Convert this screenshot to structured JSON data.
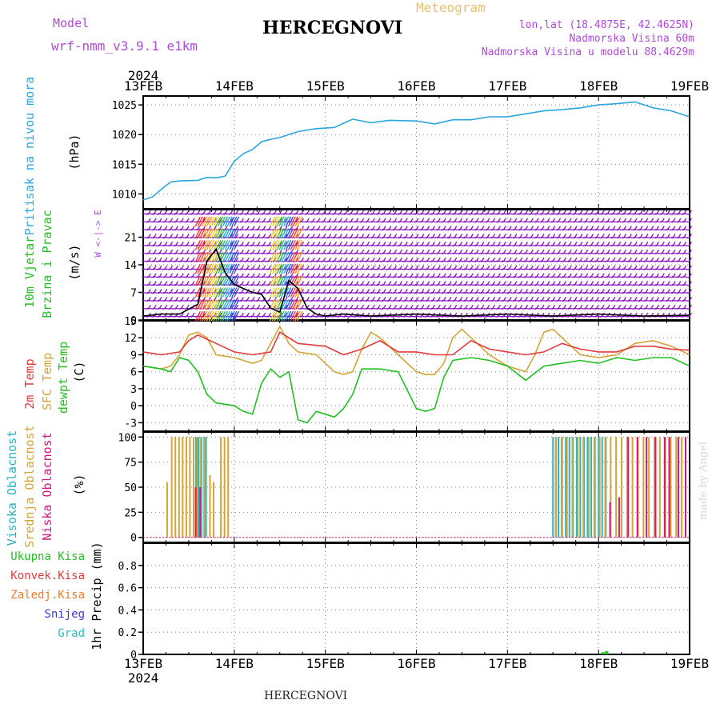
{
  "header": {
    "model_label": "Model",
    "model_name": "wrf-nmm_v3.9.1  e1km",
    "title": "HERCEGNOVI",
    "meteogram": "Meteogram",
    "lonlat": "lon,lat (18.4875E, 42.4625N)",
    "elevation": "Nadmorska Visina 60m",
    "model_elevation": "Nadmorska Visina u modelu 88.4629m",
    "bottom_title": "HERCEGNOVI",
    "credit": "made by Angel"
  },
  "colors": {
    "pressure": "#2aa6e0",
    "wind_label": "#22c022",
    "wind_barb": "#8a12c0",
    "temp_2m": "#e23a3a",
    "temp_sfc": "#d4a437",
    "dewpoint": "#22c022",
    "cloud_high": "#27b3c6",
    "cloud_mid": "#d4a437",
    "cloud_low": "#d4177f",
    "precip_total": "#22c022",
    "precip_conv": "#e23a3a",
    "precip_frz": "#f07a2a",
    "precip_snow": "#3a3ad6",
    "precip_grad": "#22c0c0",
    "magenta_label": "#b04ad8",
    "grid": "#888888"
  },
  "chart_data": [
    {
      "type": "line",
      "title": "Pritisak na nivou mora",
      "ylabel": "(hPa)",
      "ylim": [
        1007.5,
        1026.5
      ],
      "yticks": [
        1010,
        1015,
        1020,
        1025
      ],
      "x_labels": [
        "13FEB",
        "14FEB",
        "15FEB",
        "16FEB",
        "17FEB",
        "18FEB",
        "19FEB"
      ],
      "x_year": "2024",
      "grid": true,
      "series": [
        {
          "name": "Pritisak na nivou mora",
          "x": [
            0,
            0.1,
            0.2,
            0.3,
            0.4,
            0.6,
            0.7,
            0.8,
            0.9,
            1.0,
            1.1,
            1.2,
            1.3,
            1.4,
            1.5,
            1.6,
            1.7,
            1.9,
            2.1,
            2.3,
            2.5,
            2.7,
            3.0,
            3.2,
            3.4,
            3.6,
            3.8,
            4.0,
            4.2,
            4.4,
            4.6,
            4.8,
            5.0,
            5.2,
            5.4,
            5.6,
            5.8,
            6.0
          ],
          "values": [
            1009.0,
            1009.5,
            1010.8,
            1012.0,
            1012.2,
            1012.3,
            1012.8,
            1012.7,
            1013.0,
            1015.5,
            1016.8,
            1017.5,
            1018.8,
            1019.2,
            1019.5,
            1020.0,
            1020.5,
            1021.0,
            1021.2,
            1022.6,
            1022.0,
            1022.4,
            1022.3,
            1021.8,
            1022.5,
            1022.5,
            1023.0,
            1023.0,
            1023.5,
            1024.0,
            1024.2,
            1024.5,
            1025.0,
            1025.2,
            1025.5,
            1024.5,
            1024.0,
            1023.0
          ]
        }
      ]
    },
    {
      "type": "line",
      "title": "10m Vjetar Brzina i Pravac",
      "ylabel": "(m/s)",
      "direction_axis": "W <-|-> E",
      "ylim": [
        0,
        28
      ],
      "yticks": [
        0,
        7,
        14,
        21
      ],
      "grid": true,
      "series": [
        {
          "name": "Brzina",
          "x": [
            0,
            0.2,
            0.4,
            0.6,
            0.7,
            0.8,
            0.9,
            1.0,
            1.1,
            1.2,
            1.3,
            1.4,
            1.5,
            1.6,
            1.7,
            1.8,
            1.9,
            2.0,
            2.2,
            2.5,
            3.0,
            3.5,
            4.0,
            4.5,
            5.0,
            5.5,
            6.0
          ],
          "values": [
            1.0,
            1.5,
            1.5,
            4.0,
            15.0,
            18.0,
            12.0,
            9.0,
            8.0,
            7.0,
            6.5,
            3.0,
            2.0,
            10.0,
            8.0,
            3.0,
            1.5,
            1.0,
            1.5,
            1.0,
            1.5,
            1.0,
            1.5,
            1.0,
            1.5,
            1.0,
            1.2
          ]
        }
      ]
    },
    {
      "type": "line",
      "ylabel": "(C)",
      "ylim": [
        -4.5,
        15
      ],
      "yticks": [
        -3,
        0,
        3,
        6,
        9,
        12,
        15
      ],
      "grid": true,
      "series": [
        {
          "name": "2m Temp",
          "x": [
            0,
            0.2,
            0.4,
            0.5,
            0.6,
            0.8,
            1.0,
            1.2,
            1.4,
            1.5,
            1.7,
            2.0,
            2.2,
            2.4,
            2.6,
            2.8,
            3.0,
            3.2,
            3.4,
            3.6,
            3.8,
            4.0,
            4.2,
            4.4,
            4.6,
            4.8,
            5.0,
            5.2,
            5.4,
            5.6,
            5.8,
            6.0
          ],
          "values": [
            9.5,
            9.0,
            9.5,
            11.5,
            12.5,
            11.0,
            9.5,
            9.0,
            9.5,
            13.0,
            11.0,
            10.5,
            9.0,
            10.0,
            11.5,
            9.5,
            9.5,
            9.0,
            9.0,
            11.5,
            10.0,
            9.5,
            9.0,
            9.5,
            11.0,
            10.0,
            9.5,
            9.5,
            10.5,
            10.5,
            10.0,
            9.8
          ]
        },
        {
          "name": "SFC Temp",
          "x": [
            0,
            0.2,
            0.3,
            0.4,
            0.5,
            0.6,
            0.7,
            0.8,
            1.0,
            1.2,
            1.3,
            1.4,
            1.5,
            1.6,
            1.7,
            1.9,
            2.1,
            2.2,
            2.3,
            2.4,
            2.5,
            2.6,
            2.8,
            3.0,
            3.1,
            3.2,
            3.3,
            3.4,
            3.5,
            3.6,
            3.8,
            4.0,
            4.1,
            4.2,
            4.3,
            4.4,
            4.5,
            4.6,
            4.8,
            5.0,
            5.2,
            5.4,
            5.6,
            5.8,
            6.0
          ],
          "values": [
            7.0,
            6.5,
            7.0,
            9.0,
            12.5,
            13.0,
            12.0,
            9.0,
            8.5,
            7.5,
            8.0,
            11.0,
            14.0,
            11.0,
            9.5,
            9.0,
            6.0,
            5.5,
            6.0,
            10.0,
            13.0,
            12.0,
            9.0,
            6.0,
            5.5,
            5.5,
            7.5,
            12.0,
            13.5,
            12.0,
            9.0,
            7.0,
            6.5,
            6.0,
            9.0,
            13.0,
            13.5,
            12.0,
            9.0,
            8.5,
            9.0,
            11.0,
            11.5,
            10.5,
            9.0
          ]
        },
        {
          "name": "dewpt Temp",
          "x": [
            0,
            0.2,
            0.3,
            0.4,
            0.5,
            0.6,
            0.7,
            0.8,
            1.0,
            1.1,
            1.2,
            1.3,
            1.4,
            1.5,
            1.6,
            1.7,
            1.8,
            1.9,
            2.0,
            2.1,
            2.2,
            2.3,
            2.4,
            2.6,
            2.8,
            3.0,
            3.1,
            3.2,
            3.3,
            3.4,
            3.6,
            3.8,
            4.0,
            4.2,
            4.4,
            4.6,
            4.8,
            5.0,
            5.2,
            5.4,
            5.6,
            5.8,
            6.0
          ],
          "values": [
            7.0,
            6.5,
            6.0,
            8.5,
            8.0,
            6.0,
            2.0,
            0.5,
            0.0,
            -1.0,
            -1.5,
            4.0,
            6.5,
            5.0,
            6.0,
            -2.5,
            -3.0,
            -1.0,
            -1.5,
            -2.0,
            -0.5,
            2.0,
            6.5,
            6.5,
            6.0,
            -0.5,
            -1.0,
            -0.5,
            5.0,
            8.0,
            8.5,
            8.0,
            7.0,
            4.5,
            7.0,
            7.5,
            8.0,
            7.5,
            8.5,
            8.0,
            8.5,
            8.5,
            7.0
          ]
        }
      ]
    },
    {
      "type": "bar",
      "ylabel": "(%)",
      "ylim": [
        -5,
        105
      ],
      "yticks": [
        0,
        25,
        50,
        75,
        100
      ],
      "grid": true,
      "series": [
        {
          "name": "Visoka Oblacnost",
          "x": [
            0.58,
            0.61,
            0.64,
            0.67,
            0.69,
            4.5,
            4.53,
            4.56,
            4.6,
            4.64,
            4.68,
            4.72,
            4.76,
            4.8,
            4.84,
            4.88,
            4.92,
            4.96,
            5.0,
            5.04,
            5.08
          ],
          "values": [
            100,
            100,
            100,
            100,
            100,
            100,
            100,
            100,
            100,
            100,
            100,
            100,
            100,
            100,
            100,
            100,
            100,
            100,
            100,
            100,
            100
          ]
        },
        {
          "name": "Srednja Oblacnost",
          "x": [
            0.25,
            0.3,
            0.34,
            0.38,
            0.42,
            0.46,
            0.5,
            0.54,
            0.58,
            0.62,
            0.66,
            0.72,
            0.76,
            0.84,
            0.88,
            0.92,
            4.52,
            4.58,
            4.64,
            4.7,
            4.76,
            4.82,
            4.88,
            4.94,
            5.0,
            5.06,
            5.12,
            5.18,
            5.24,
            5.3,
            5.36,
            5.42,
            5.48,
            5.54,
            5.6,
            5.66,
            5.72,
            5.78,
            5.84,
            5.9
          ],
          "values": [
            55,
            100,
            100,
            100,
            100,
            100,
            100,
            100,
            100,
            100,
            100,
            62,
            55,
            100,
            100,
            100,
            100,
            100,
            100,
            100,
            100,
            100,
            100,
            100,
            100,
            100,
            100,
            100,
            100,
            100,
            100,
            100,
            100,
            100,
            100,
            100,
            100,
            100,
            100,
            100
          ]
        },
        {
          "name": "Niska Oblacnost",
          "x": [
            0.55,
            0.6,
            5.1,
            5.2,
            5.3,
            5.4,
            5.5,
            5.6,
            5.7,
            5.75,
            5.85,
            5.93
          ],
          "values": [
            50,
            50,
            35,
            40,
            100,
            100,
            100,
            100,
            100,
            100,
            100,
            100
          ]
        }
      ]
    },
    {
      "type": "bar",
      "ylabel": "1hr Precip (mm)",
      "ylim": [
        0,
        1.0
      ],
      "yticks": [
        0,
        0.2,
        0.4,
        0.6,
        0.8
      ],
      "grid": true,
      "series": [
        {
          "name": "Ukupna Kisa",
          "x": [
            5.05,
            5.09
          ],
          "values": [
            0.02,
            0.03
          ]
        },
        {
          "name": "Konvek.Kisa",
          "x": [],
          "values": []
        },
        {
          "name": "Zaledj.Kisa",
          "x": [],
          "values": []
        },
        {
          "name": "Snijeg",
          "x": [],
          "values": []
        },
        {
          "name": "Grad",
          "x": [],
          "values": []
        }
      ]
    }
  ],
  "labels": {
    "p1": [
      "Pritisak na nivou mora",
      "(hPa)"
    ],
    "p2": [
      "10m Vjetar",
      "Brzina i Pravac",
      "(m/s)"
    ],
    "p2_dir": "W <-|-> E",
    "p3": [
      "2m Temp",
      "SFC Temp",
      "dewpt Temp",
      "(C)"
    ],
    "p4": [
      "Visoka Oblacnost",
      "Srednja Oblacnost",
      "Niska Oblacnost",
      "(%)"
    ],
    "p5_legend": [
      "Ukupna Kisa",
      "Konvek.Kisa",
      "Zaledj.Kisa",
      "Snijeg",
      "Grad"
    ],
    "p5_ylabel": "1hr Precip (mm)"
  }
}
